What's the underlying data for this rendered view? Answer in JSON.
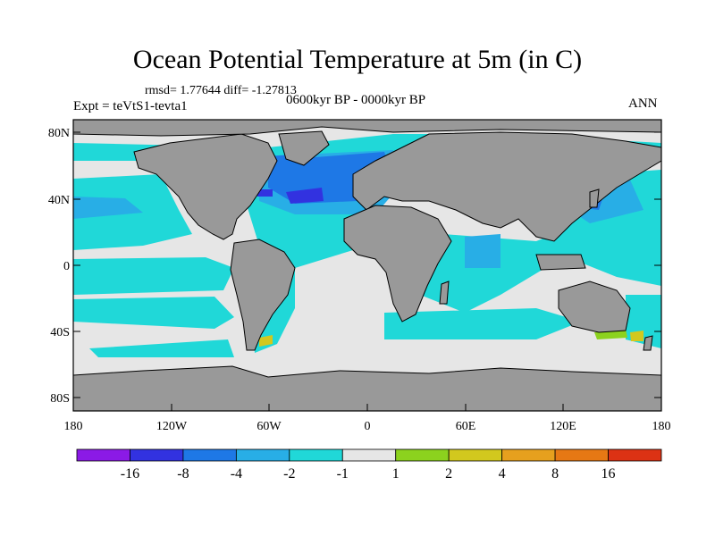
{
  "title": "Ocean Potential Temperature at 5m (in C)",
  "stats": "rmsd= 1.77644  diff= -1.27813",
  "experiment": "Expt = teVtS1-tevta1",
  "period": "0600kyr BP - 0000kyr BP",
  "season": "ANN",
  "lat_labels": [
    "80N",
    "40N",
    "0",
    "40S",
    "80S"
  ],
  "lon_labels": [
    "180",
    "120W",
    "60W",
    "0",
    "60E",
    "120E",
    "180"
  ],
  "colorbar": {
    "labels": [
      "-16",
      "-8",
      "-4",
      "-2",
      "-1",
      "1",
      "2",
      "4",
      "8",
      "16"
    ],
    "colors": [
      "#8b1ae6",
      "#3232e0",
      "#1e78e6",
      "#28aee6",
      "#20d8d8",
      "#e6e6e6",
      "#8cd21e",
      "#d2c81e",
      "#e6a01e",
      "#e67814",
      "#dc3214"
    ]
  },
  "map_colors": {
    "land": "#999999",
    "neutral": "#e6e6e6",
    "cyan": "#20d8d8",
    "light_blue": "#28aee6",
    "blue": "#1e78e6",
    "dark_blue": "#3232e0",
    "yellow_green": "#8cd21e",
    "olive": "#d2c81e"
  }
}
